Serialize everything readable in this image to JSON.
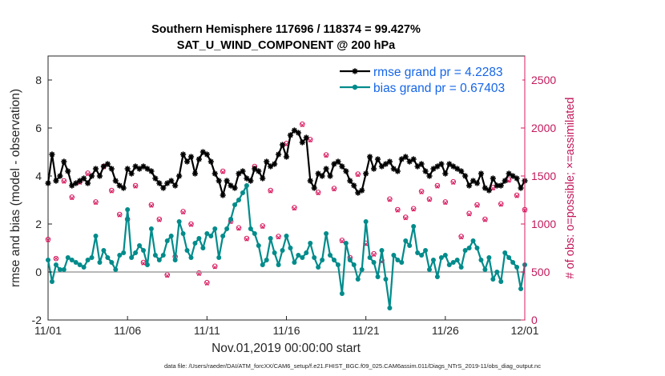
{
  "chart_data": {
    "type": "line",
    "title": "Southern Hemisphere 117696 / 118374 = 99.427%",
    "subtitle": "SAT_U_WIND_COMPONENT @ 200 hPa",
    "xlabel": "Nov.01,2019 00:00:00 start",
    "ylabel": "rmse and bias (model - observation)",
    "ylabel_right": "# of obs: o=possible; ×=assimilated",
    "footnote": "data file: /Users/raeder/DAI/ATM_forcXX/CAM6_setup/f.e21.FHIST_BGC.f09_025.CAM6assim.011/Diags_NTrS_2019-11/obs_diag_output.nc",
    "xlim": [
      0,
      30
    ],
    "ylim": [
      -2,
      9
    ],
    "ylim_right": [
      0,
      2750
    ],
    "x_ticks": [
      0,
      5,
      10,
      15,
      20,
      25,
      30
    ],
    "x_tick_labels": [
      "11/01",
      "11/06",
      "11/11",
      "11/16",
      "11/21",
      "11/26",
      "12/01"
    ],
    "y_ticks": [
      -2,
      0,
      2,
      4,
      6,
      8
    ],
    "y_tick_labels": [
      "-2",
      "0",
      "2",
      "4",
      "6",
      "8"
    ],
    "y_right_ticks": [
      0,
      500,
      1000,
      1500,
      2000,
      2500
    ],
    "y_right_tick_labels": [
      "0",
      "500",
      "1000",
      "1500",
      "2000",
      "2500"
    ],
    "legend": {
      "position": "top-right",
      "entries": [
        "rmse grand pr = 4.2283",
        "bias grand pr = 0.67403"
      ]
    },
    "series": [
      {
        "name": "rmse grand pr = 4.2283",
        "color": "#000000",
        "axis": "left",
        "x": [
          0.0,
          0.25,
          0.5,
          0.75,
          1.0,
          1.25,
          1.5,
          1.75,
          2.0,
          2.25,
          2.5,
          2.75,
          3.0,
          3.25,
          3.5,
          3.75,
          4.0,
          4.25,
          4.5,
          4.75,
          5.0,
          5.25,
          5.5,
          5.75,
          6.0,
          6.25,
          6.5,
          6.75,
          7.0,
          7.25,
          7.5,
          7.75,
          8.0,
          8.25,
          8.5,
          8.75,
          9.0,
          9.25,
          9.5,
          9.75,
          10.0,
          10.25,
          10.5,
          10.75,
          11.0,
          11.25,
          11.5,
          11.75,
          12.0,
          12.25,
          12.5,
          12.75,
          13.0,
          13.25,
          13.5,
          13.75,
          14.0,
          14.25,
          14.5,
          14.75,
          15.0,
          15.25,
          15.5,
          15.75,
          16.0,
          16.25,
          16.5,
          16.75,
          17.0,
          17.25,
          17.5,
          17.75,
          18.0,
          18.25,
          18.5,
          18.75,
          19.0,
          19.25,
          19.5,
          19.75,
          20.0,
          20.25,
          20.5,
          20.75,
          21.0,
          21.25,
          21.5,
          21.75,
          22.0,
          22.25,
          22.5,
          22.75,
          23.0,
          23.25,
          23.5,
          23.75,
          24.0,
          24.25,
          24.5,
          24.75,
          25.0,
          25.25,
          25.5,
          25.75,
          26.0,
          26.25,
          26.5,
          26.75,
          27.0,
          27.25,
          27.5,
          27.75,
          28.0,
          28.25,
          28.5,
          28.75,
          29.0,
          29.25,
          29.5,
          29.75,
          30.0
        ],
        "values": [
          3.7,
          4.9,
          3.8,
          4.0,
          4.6,
          4.2,
          3.6,
          3.7,
          3.8,
          3.9,
          3.7,
          4.0,
          4.3,
          4.0,
          4.4,
          4.5,
          4.3,
          3.8,
          3.6,
          3.5,
          4.3,
          4.1,
          4.4,
          4.3,
          4.4,
          4.3,
          4.2,
          3.9,
          3.7,
          3.5,
          3.7,
          3.8,
          3.6,
          4.0,
          4.9,
          4.6,
          4.8,
          4.1,
          4.7,
          5.0,
          4.9,
          4.6,
          4.1,
          3.8,
          3.2,
          3.8,
          3.6,
          3.5,
          4.1,
          4.2,
          3.9,
          3.8,
          4.3,
          4.2,
          3.9,
          4.6,
          4.4,
          4.5,
          4.9,
          5.3,
          4.8,
          5.7,
          5.9,
          5.8,
          5.4,
          5.6,
          3.8,
          3.5,
          4.1,
          4.0,
          4.3,
          4.0,
          4.5,
          4.6,
          4.4,
          4.2,
          3.8,
          3.6,
          3.3,
          3.4,
          4.1,
          4.8,
          4.3,
          4.7,
          4.4,
          4.5,
          4.6,
          4.3,
          4.2,
          4.7,
          4.8,
          4.6,
          4.7,
          4.4,
          4.5,
          4.2,
          4.0,
          4.3,
          4.4,
          4.5,
          4.1,
          4.5,
          4.4,
          4.3,
          4.2,
          4.0,
          3.6,
          3.8,
          3.7,
          4.1,
          3.5,
          3.4,
          3.9,
          3.6,
          3.6,
          3.8,
          4.1,
          4.0,
          3.9,
          3.5,
          3.8
        ],
        "marker": "asterisk"
      },
      {
        "name": "bias grand pr = 0.67403",
        "color": "#008b8b",
        "axis": "left",
        "x": [
          0.0,
          0.25,
          0.5,
          0.75,
          1.0,
          1.25,
          1.5,
          1.75,
          2.0,
          2.25,
          2.5,
          2.75,
          3.0,
          3.25,
          3.5,
          3.75,
          4.0,
          4.25,
          4.5,
          4.75,
          5.0,
          5.25,
          5.5,
          5.75,
          6.0,
          6.25,
          6.5,
          6.75,
          7.0,
          7.25,
          7.5,
          7.75,
          8.0,
          8.25,
          8.5,
          8.75,
          9.0,
          9.25,
          9.5,
          9.75,
          10.0,
          10.25,
          10.5,
          10.75,
          11.0,
          11.25,
          11.5,
          11.75,
          12.0,
          12.25,
          12.5,
          12.75,
          13.0,
          13.25,
          13.5,
          13.75,
          14.0,
          14.25,
          14.5,
          14.75,
          15.0,
          15.25,
          15.5,
          15.75,
          16.0,
          16.25,
          16.5,
          16.75,
          17.0,
          17.25,
          17.5,
          17.75,
          18.0,
          18.25,
          18.5,
          18.75,
          19.0,
          19.25,
          19.5,
          19.75,
          20.0,
          20.25,
          20.5,
          20.75,
          21.0,
          21.25,
          21.5,
          21.75,
          22.0,
          22.25,
          22.5,
          22.75,
          23.0,
          23.25,
          23.5,
          23.75,
          24.0,
          24.25,
          24.5,
          24.75,
          25.0,
          25.25,
          25.5,
          25.75,
          26.0,
          26.25,
          26.5,
          26.75,
          27.0,
          27.25,
          27.5,
          27.75,
          28.0,
          28.25,
          28.5,
          28.75,
          29.0,
          29.25,
          29.5,
          29.75,
          30.0
        ],
        "values": [
          0.5,
          -0.4,
          0.3,
          0.1,
          0.1,
          0.6,
          0.5,
          0.4,
          0.3,
          0.2,
          0.5,
          0.6,
          1.5,
          0.4,
          0.9,
          0.6,
          0.4,
          0.1,
          0.7,
          0.8,
          2.6,
          0.6,
          0.8,
          1.1,
          0.9,
          0.3,
          1.8,
          0.7,
          0.5,
          0.7,
          1.3,
          1.5,
          0.5,
          2.1,
          1.6,
          0.9,
          0.6,
          1.2,
          1.4,
          1.0,
          1.6,
          1.5,
          1.8,
          0.6,
          1.5,
          1.8,
          2.2,
          2.8,
          3.0,
          3.3,
          3.6,
          1.8,
          1.6,
          1.1,
          0.3,
          0.5,
          1.4,
          0.8,
          0.3,
          0.9,
          1.5,
          1.0,
          0.4,
          0.7,
          0.6,
          0.8,
          1.2,
          0.6,
          0.2,
          0.5,
          1.6,
          0.7,
          0.5,
          0.3,
          -0.9,
          1.2,
          0.5,
          0.3,
          -0.3,
          0.1,
          2.1,
          0.6,
          0.4,
          -0.2,
          0.9,
          -0.3,
          -1.5,
          0.7,
          0.5,
          0.4,
          1.3,
          1.1,
          1.9,
          0.8,
          0.7,
          0.9,
          0.1,
          0.5,
          -0.2,
          0.6,
          0.7,
          0.3,
          0.4,
          0.5,
          0.2,
          0.9,
          1.0,
          1.3,
          1.0,
          0.5,
          0.1,
          0.6,
          -0.3,
          0.0,
          -0.4,
          0.8,
          0.6,
          0.4,
          0.2,
          -0.7,
          0.3
        ],
        "marker": "circle"
      }
    ],
    "obs_counts": [
      {
        "x": 0.0,
        "possible": 840,
        "assimilated": 830
      },
      {
        "x": 0.5,
        "possible": 640,
        "assimilated": 640
      },
      {
        "x": 1.0,
        "possible": 1450,
        "assimilated": 1440
      },
      {
        "x": 1.5,
        "possible": 1280,
        "assimilated": 1270
      },
      {
        "x": 2.0,
        "possible": 1440,
        "assimilated": 1430
      },
      {
        "x": 2.5,
        "possible": 1530,
        "assimilated": 1520
      },
      {
        "x": 3.0,
        "possible": 1230,
        "assimilated": 1220
      },
      {
        "x": 3.5,
        "possible": 1600,
        "assimilated": 1590
      },
      {
        "x": 4.0,
        "possible": 1350,
        "assimilated": 1340
      },
      {
        "x": 4.5,
        "possible": 1100,
        "assimilated": 1090
      },
      {
        "x": 5.0,
        "possible": 1050,
        "assimilated": 1040
      },
      {
        "x": 5.5,
        "possible": 1400,
        "assimilated": 1390
      },
      {
        "x": 6.0,
        "possible": 600,
        "assimilated": 590
      },
      {
        "x": 6.5,
        "possible": 1200,
        "assimilated": 1190
      },
      {
        "x": 7.0,
        "possible": 1050,
        "assimilated": 1040
      },
      {
        "x": 7.5,
        "possible": 470,
        "assimilated": 460
      },
      {
        "x": 8.0,
        "possible": 660,
        "assimilated": 650
      },
      {
        "x": 8.5,
        "possible": 1130,
        "assimilated": 1120
      },
      {
        "x": 9.0,
        "possible": 1000,
        "assimilated": 990
      },
      {
        "x": 9.5,
        "possible": 490,
        "assimilated": 480
      },
      {
        "x": 10.0,
        "possible": 390,
        "assimilated": 380
      },
      {
        "x": 10.5,
        "possible": 560,
        "assimilated": 550
      },
      {
        "x": 11.0,
        "possible": 1550,
        "assimilated": 1540
      },
      {
        "x": 11.5,
        "possible": 1030,
        "assimilated": 1020
      },
      {
        "x": 12.0,
        "possible": 960,
        "assimilated": 950
      },
      {
        "x": 12.5,
        "possible": 850,
        "assimilated": 840
      },
      {
        "x": 13.0,
        "possible": 1600,
        "assimilated": 1590
      },
      {
        "x": 13.5,
        "possible": 980,
        "assimilated": 970
      },
      {
        "x": 14.0,
        "possible": 1350,
        "assimilated": 1340
      },
      {
        "x": 14.5,
        "possible": 870,
        "assimilated": 860
      },
      {
        "x": 15.0,
        "possible": 1840,
        "assimilated": 1830
      },
      {
        "x": 15.5,
        "possible": 1170,
        "assimilated": 1160
      },
      {
        "x": 16.0,
        "possible": 2040,
        "assimilated": 2030
      },
      {
        "x": 16.5,
        "possible": 1880,
        "assimilated": 1870
      },
      {
        "x": 17.0,
        "possible": 1330,
        "assimilated": 1320
      },
      {
        "x": 17.5,
        "possible": 1720,
        "assimilated": 1710
      },
      {
        "x": 18.0,
        "possible": 1370,
        "assimilated": 1360
      },
      {
        "x": 18.5,
        "possible": 830,
        "assimilated": 820
      },
      {
        "x": 19.0,
        "possible": 650,
        "assimilated": 640
      },
      {
        "x": 19.5,
        "possible": 1520,
        "assimilated": 1510
      },
      {
        "x": 20.0,
        "possible": 800,
        "assimilated": 790
      },
      {
        "x": 20.5,
        "possible": 690,
        "assimilated": 680
      },
      {
        "x": 21.0,
        "possible": 620,
        "assimilated": 610
      },
      {
        "x": 21.5,
        "possible": 1260,
        "assimilated": 1250
      },
      {
        "x": 22.0,
        "possible": 1150,
        "assimilated": 1140
      },
      {
        "x": 22.5,
        "possible": 1070,
        "assimilated": 1060
      },
      {
        "x": 23.0,
        "possible": 1160,
        "assimilated": 1150
      },
      {
        "x": 23.5,
        "possible": 1340,
        "assimilated": 1330
      },
      {
        "x": 24.0,
        "possible": 1260,
        "assimilated": 1250
      },
      {
        "x": 24.5,
        "possible": 1400,
        "assimilated": 1390
      },
      {
        "x": 25.0,
        "possible": 1230,
        "assimilated": 1220
      },
      {
        "x": 25.5,
        "possible": 1440,
        "assimilated": 1430
      },
      {
        "x": 26.0,
        "possible": 870,
        "assimilated": 860
      },
      {
        "x": 26.5,
        "possible": 1110,
        "assimilated": 1100
      },
      {
        "x": 27.0,
        "possible": 1200,
        "assimilated": 1190
      },
      {
        "x": 27.5,
        "possible": 1050,
        "assimilated": 1040
      },
      {
        "x": 28.0,
        "possible": 1380,
        "assimilated": 1370
      },
      {
        "x": 28.5,
        "possible": 1210,
        "assimilated": 1200
      },
      {
        "x": 29.0,
        "possible": 1460,
        "assimilated": 1450
      },
      {
        "x": 29.5,
        "possible": 1300,
        "assimilated": 1290
      },
      {
        "x": 30.0,
        "possible": 1150,
        "assimilated": 1140
      }
    ],
    "obs_color": "#d81b60",
    "zero_line_color": "#a0a0a0"
  }
}
